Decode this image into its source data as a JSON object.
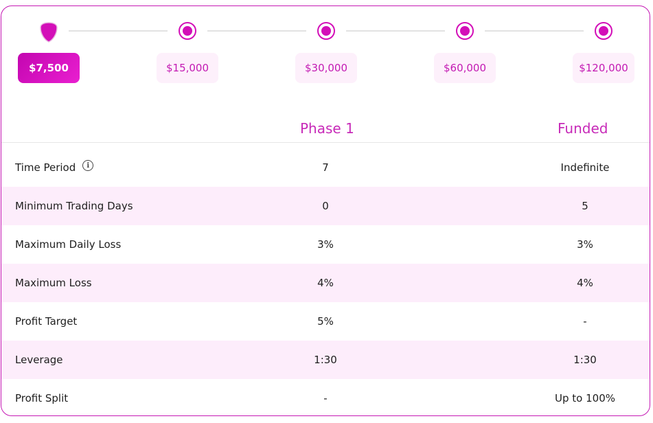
{
  "stepper": {
    "options": [
      {
        "label": "$7,500",
        "selected": true
      },
      {
        "label": "$15,000",
        "selected": false
      },
      {
        "label": "$30,000",
        "selected": false
      },
      {
        "label": "$60,000",
        "selected": false
      },
      {
        "label": "$120,000",
        "selected": false
      }
    ],
    "accent": "#d30fb8"
  },
  "table": {
    "columns": [
      "Phase 1",
      "Funded"
    ],
    "rows": [
      {
        "label": "Time Period",
        "phase1": "7",
        "funded": "Indefinite",
        "info_icon": "info-icon"
      },
      {
        "label": "Minimum Trading Days",
        "phase1": "0",
        "funded": "5"
      },
      {
        "label": "Maximum Daily Loss",
        "phase1": "3%",
        "funded": "3%"
      },
      {
        "label": "Maximum Loss",
        "phase1": "4%",
        "funded": "4%"
      },
      {
        "label": "Profit Target",
        "phase1": "5%",
        "funded": "-"
      },
      {
        "label": "Leverage",
        "phase1": "1:30",
        "funded": "1:30"
      },
      {
        "label": "Profit Split",
        "phase1": "-",
        "funded": "Up to 100%"
      }
    ],
    "row_alt_color": "#fdedfb"
  }
}
